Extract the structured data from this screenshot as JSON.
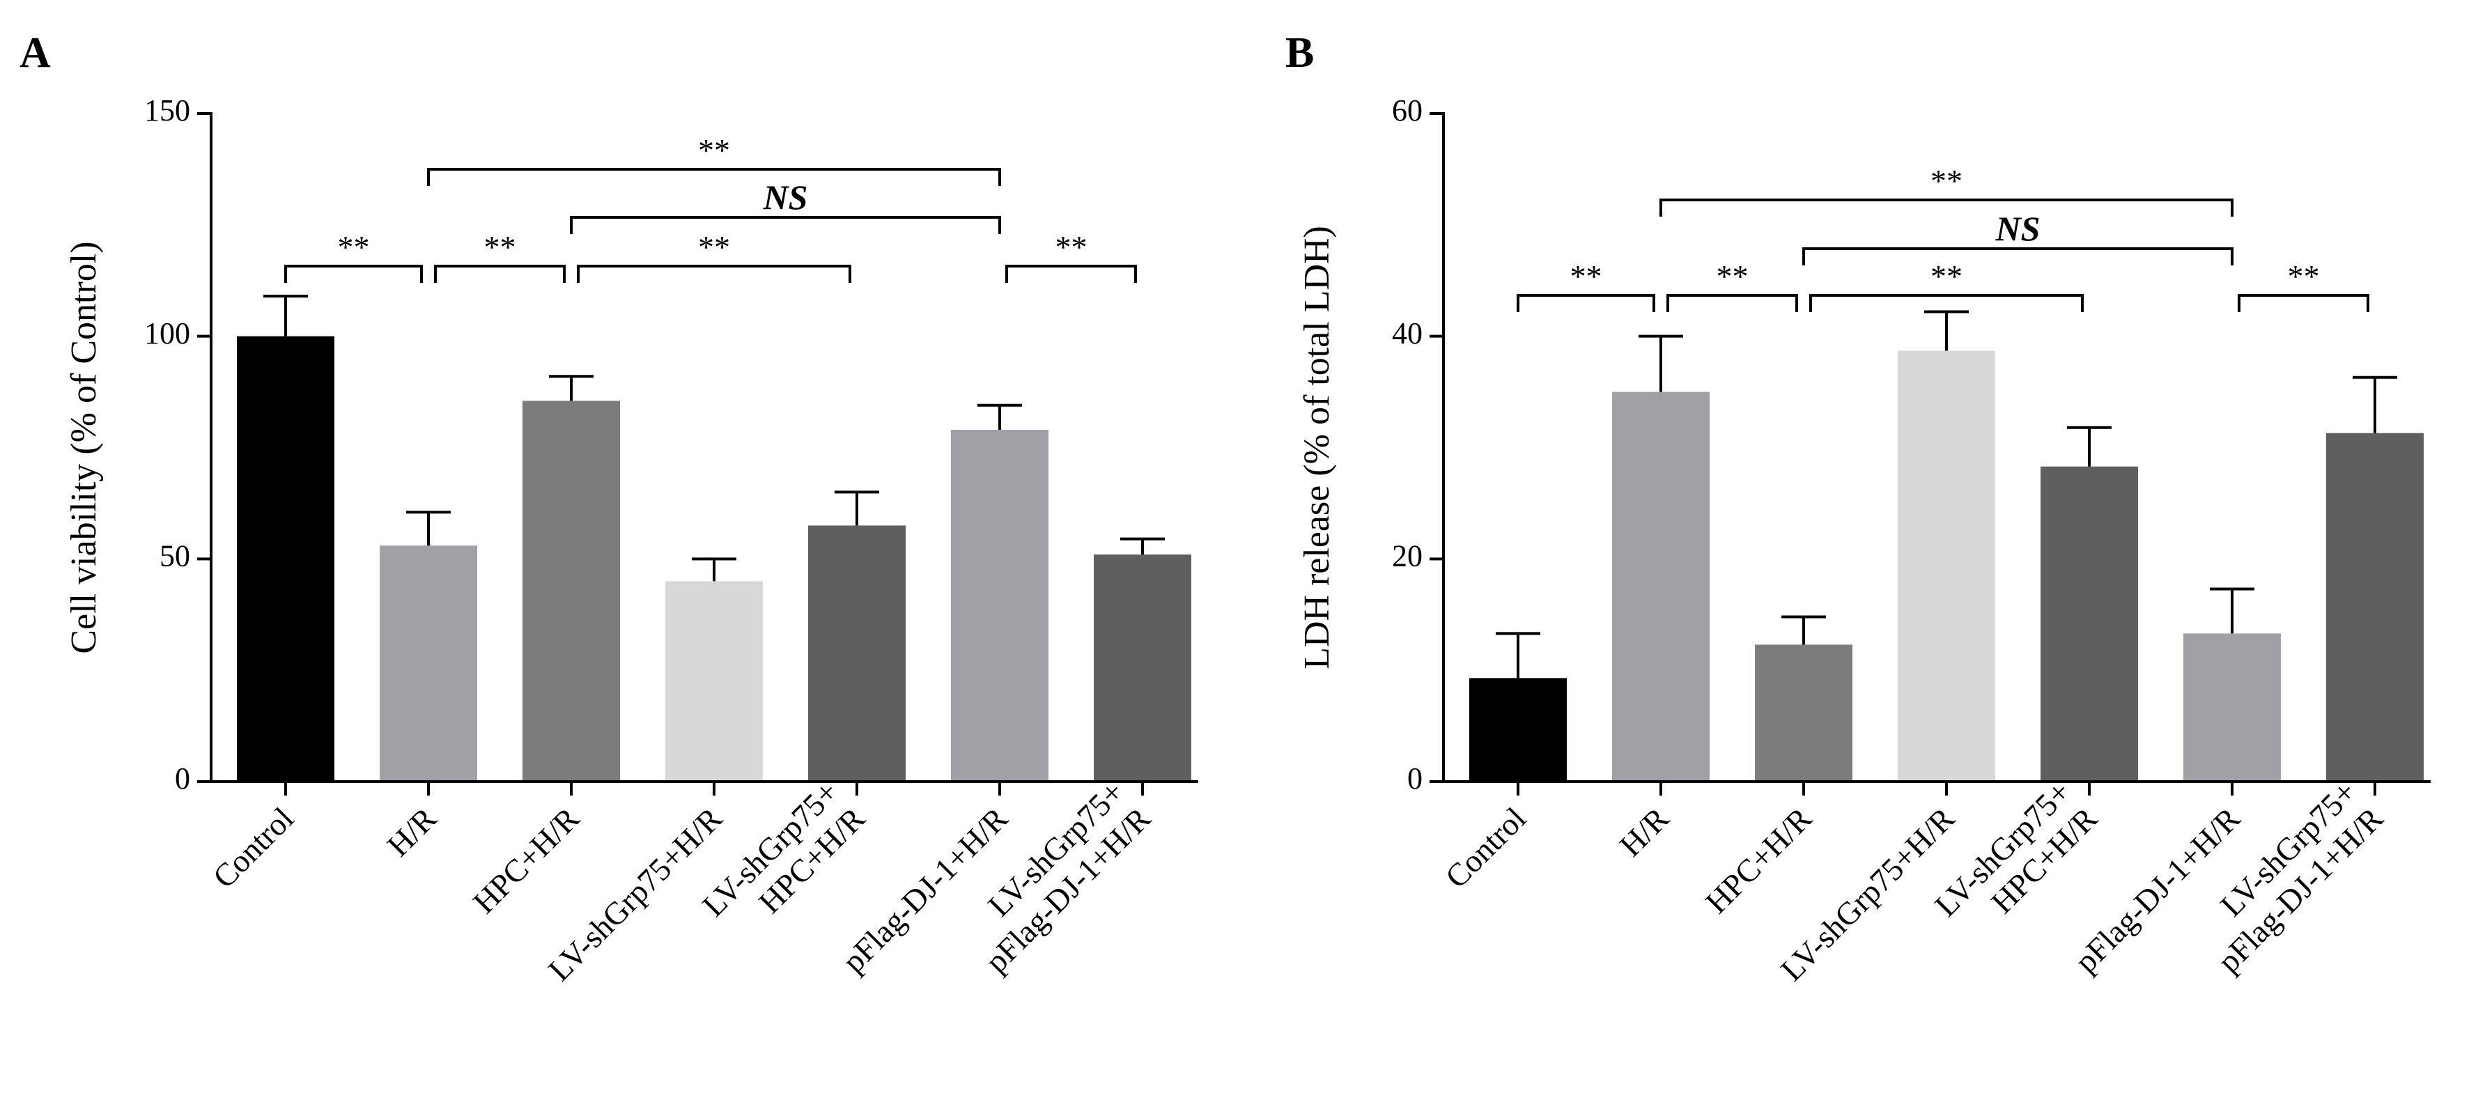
{
  "chart_data": [
    {
      "panel": "A",
      "type": "bar",
      "title": "",
      "xlabel": "",
      "ylabel": "Cell viability (% of Control)",
      "ylim": [
        0,
        150
      ],
      "yticks": [
        0,
        50,
        100,
        150
      ],
      "categories": [
        [
          "Control"
        ],
        [
          "H/R"
        ],
        [
          "HPC+H/R"
        ],
        [
          "LV-shGrp75+H/R"
        ],
        [
          "LV-shGrp75+",
          "HPC+H/R"
        ],
        [
          "pFlag-DJ-1+H/R"
        ],
        [
          "LV-shGrp75+",
          "pFlag-DJ-1+H/R"
        ]
      ],
      "values": [
        100,
        53,
        85.5,
        45,
        57.5,
        79,
        51
      ],
      "errors": [
        9,
        7.5,
        5.5,
        5,
        7.5,
        5.5,
        3.5
      ],
      "colors": [
        "#000000",
        "#a0a0a6",
        "#7c7c7e",
        "#d8d8da",
        "#5e605f",
        "#a0a0a6",
        "#5e605f"
      ],
      "significance": [
        {
          "from": 1,
          "to": 5,
          "level": 1,
          "label": "**"
        },
        {
          "from": 2,
          "to": 5,
          "level": 2,
          "label": "NS"
        },
        {
          "from": 0,
          "to": 1,
          "level": 3,
          "label": "**"
        },
        {
          "from": 1,
          "to": 2,
          "level": 3,
          "label": "**"
        },
        {
          "from": 2,
          "to": 4,
          "level": 3,
          "label": "**"
        },
        {
          "from": 5,
          "to": 6,
          "level": 3,
          "label": "**"
        }
      ]
    },
    {
      "panel": "B",
      "type": "bar",
      "title": "",
      "xlabel": "",
      "ylabel": "LDH release (% of total LDH)",
      "ylim": [
        0,
        60
      ],
      "yticks": [
        0,
        20,
        40,
        60
      ],
      "categories": [
        [
          "Control"
        ],
        [
          "H/R"
        ],
        [
          "HPC+H/R"
        ],
        [
          "LV-shGrp75+H/R"
        ],
        [
          "LV-shGrp75+",
          "HPC+H/R"
        ],
        [
          "pFlag-DJ-1+H/R"
        ],
        [
          "LV-shGrp75+",
          "pFlag-DJ-1+H/R"
        ]
      ],
      "values": [
        9.3,
        35,
        12.3,
        38.7,
        28.3,
        13.3,
        31.3
      ],
      "errors": [
        4,
        5,
        2.5,
        3.5,
        3.5,
        4,
        5
      ],
      "colors": [
        "#000000",
        "#a0a0a6",
        "#7c7c7e",
        "#d8d8da",
        "#5e605f",
        "#a0a0a6",
        "#5e605f"
      ],
      "significance": [
        {
          "from": 1,
          "to": 5,
          "level": 1,
          "label": "**"
        },
        {
          "from": 2,
          "to": 5,
          "level": 2,
          "label": "NS"
        },
        {
          "from": 0,
          "to": 1,
          "level": 3,
          "label": "**"
        },
        {
          "from": 1,
          "to": 2,
          "level": 3,
          "label": "**"
        },
        {
          "from": 2,
          "to": 4,
          "level": 3,
          "label": "**"
        },
        {
          "from": 5,
          "to": 6,
          "level": 3,
          "label": "**"
        }
      ]
    }
  ]
}
